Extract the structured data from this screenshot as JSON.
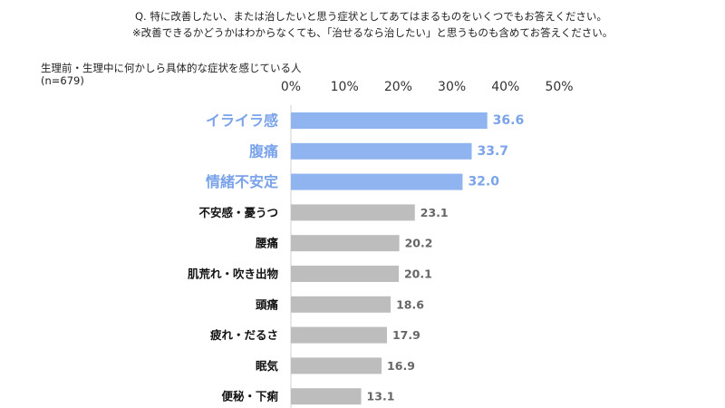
{
  "question_line1": "Q. 特に改善したい、または治したいと思う症状としてあてはまるものをいくつでもお答えください。",
  "question_line2": "※改善できるかどうかはわからなくても、「治せるなら治したい」と思うものも含めてお答えください。",
  "subtitle_line1": "生理前・生理中に何かしら具体的な症状を感じている人",
  "subtitle_line2": "(n=679)",
  "colors": {
    "highlight_bar": "#8fb4f0",
    "highlight_text": "#7aa3ea",
    "normal_bar": "#bdbdbd",
    "normal_text": "#666666"
  },
  "chart_data": {
    "type": "bar",
    "orientation": "horizontal",
    "categories": [
      "イライラ感",
      "腹痛",
      "情緒不安定",
      "不安感・憂うつ",
      "腰痛",
      "肌荒れ・吹き出物",
      "頭痛",
      "疲れ・だるさ",
      "眠気",
      "便秘・下痢"
    ],
    "values": [
      36.6,
      33.7,
      32.0,
      23.1,
      20.2,
      20.1,
      18.6,
      17.9,
      16.9,
      13.1
    ],
    "value_labels": [
      "36.6",
      "33.7",
      "32.0",
      "23.1",
      "20.2",
      "20.1",
      "18.6",
      "17.9",
      "16.9",
      "13.1"
    ],
    "highlighted": [
      true,
      true,
      true,
      false,
      false,
      false,
      false,
      false,
      false,
      false
    ],
    "xlim": [
      0,
      50
    ],
    "ticks": [
      0,
      10,
      20,
      30,
      40,
      50
    ],
    "tick_labels": [
      "0%",
      "10%",
      "20%",
      "30%",
      "40%",
      "50%"
    ],
    "tick_position": "top",
    "grid": false
  }
}
